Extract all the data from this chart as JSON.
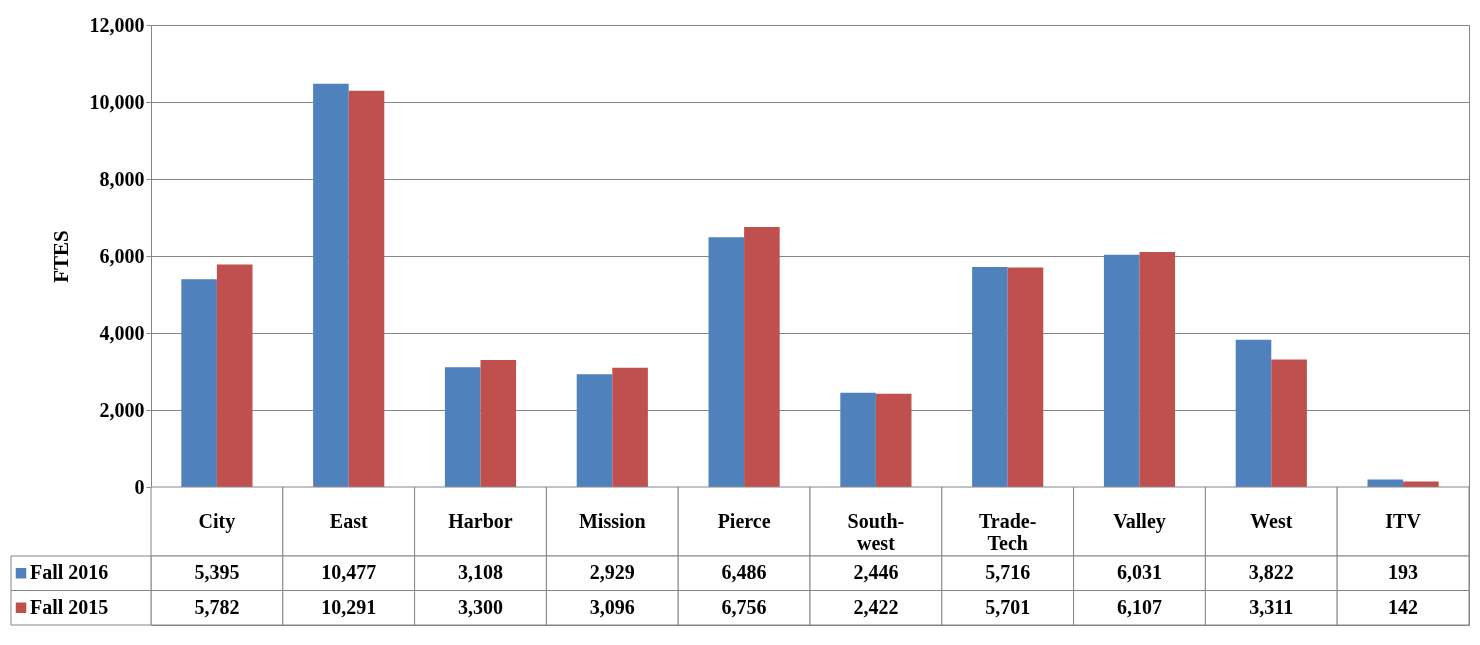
{
  "chart_data": {
    "type": "bar",
    "ylabel": "FTES",
    "categories": [
      "City",
      "East",
      "Harbor",
      "Mission",
      "Pierce",
      "South-\nwest",
      "Trade-\nTech",
      "Valley",
      "West",
      "ITV"
    ],
    "series": [
      {
        "name": "Fall 2016",
        "color": "#4f81bd",
        "values": [
          5395,
          10477,
          3108,
          2929,
          6486,
          2446,
          5716,
          6031,
          3822,
          193
        ],
        "value_labels": [
          "5,395",
          "10,477",
          "3,108",
          "2,929",
          "6,486",
          "2,446",
          "5,716",
          "6,031",
          "3,822",
          "193"
        ]
      },
      {
        "name": "Fall 2015",
        "color": "#c0504d",
        "values": [
          5782,
          10291,
          3300,
          3096,
          6756,
          2422,
          5701,
          6107,
          3311,
          142
        ],
        "value_labels": [
          "5,782",
          "10,291",
          "3,300",
          "3,096",
          "6,756",
          "2,422",
          "5,701",
          "6,107",
          "3,311",
          "142"
        ]
      }
    ],
    "ylim": [
      0,
      12000
    ],
    "yticks": [
      0,
      {
        "value": 2000,
        "label": "2,000"
      },
      {
        "value": 4000,
        "label": "4,000"
      },
      {
        "value": 6000,
        "label": "6,000"
      },
      {
        "value": 8000,
        "label": "8,000"
      },
      {
        "value": 10000,
        "label": "10,000"
      },
      {
        "value": 12000,
        "label": "12,000"
      }
    ],
    "grid": "y",
    "legend": "bottom"
  }
}
